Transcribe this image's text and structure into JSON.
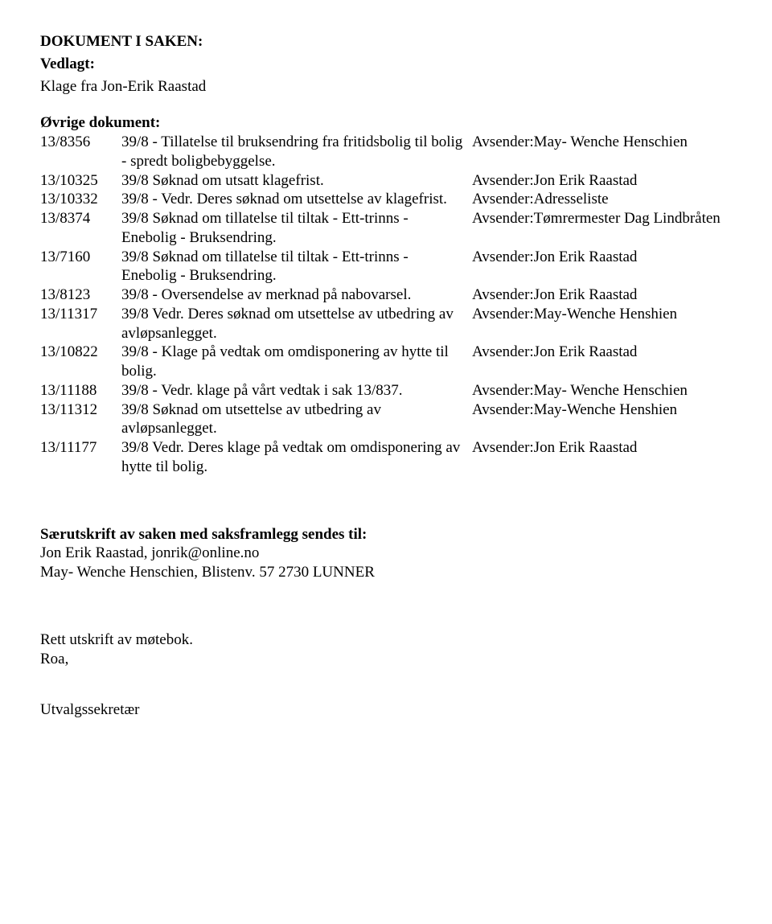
{
  "header": {
    "title": "DOKUMENT I SAKEN:",
    "attached_label": "Vedlagt:",
    "attached_text": "Klage fra Jon-Erik Raastad",
    "other_label": "Øvrige dokument:"
  },
  "docs": [
    {
      "id": "13/8356",
      "desc": "39/8 - Tillatelse til bruksendring fra fritidsbolig til bolig - spredt boligbebyggelse.",
      "sender": "Avsender:May- Wenche Henschien"
    },
    {
      "id": "13/10325",
      "desc": "39/8 Søknad om utsatt klagefrist.",
      "sender": "Avsender:Jon Erik Raastad"
    },
    {
      "id": "13/10332",
      "desc": "39/8 - Vedr. Deres søknad om utsettelse av klagefrist.",
      "sender": "Avsender:Adresseliste"
    },
    {
      "id": "13/8374",
      "desc": "39/8 Søknad om tillatelse til tiltak - Ett-trinns - Enebolig - Bruksendring.",
      "sender": "Avsender:Tømrermester Dag Lindbråten"
    },
    {
      "id": "13/7160",
      "desc": "39/8 Søknad om tillatelse til tiltak - Ett-trinns - Enebolig - Bruksendring.",
      "sender": "Avsender:Jon Erik Raastad"
    },
    {
      "id": "13/8123",
      "desc": "39/8 - Oversendelse av merknad på nabovarsel.",
      "sender": "Avsender:Jon Erik Raastad"
    },
    {
      "id": "13/11317",
      "desc": "39/8 Vedr. Deres søknad om utsettelse av utbedring av avløpsanlegget.",
      "sender": "Avsender:May-Wenche Henshien"
    },
    {
      "id": "13/10822",
      "desc": "39/8 - Klage på vedtak om omdisponering av hytte til bolig.",
      "sender": "Avsender:Jon Erik Raastad"
    },
    {
      "id": "13/11188",
      "desc": "39/8 - Vedr. klage på vårt vedtak i sak 13/837.",
      "sender": "Avsender:May- Wenche Henschien"
    },
    {
      "id": "13/11312",
      "desc": "39/8 Søknad om utsettelse av utbedring av avløpsanlegget.",
      "sender": "Avsender:May-Wenche Henshien"
    },
    {
      "id": "13/11177",
      "desc": "39/8 Vedr. Deres klage på vedtak om omdisponering av hytte til bolig.",
      "sender": "Avsender:Jon Erik Raastad"
    }
  ],
  "copies": {
    "heading": "Særutskrift av saken med saksframlegg sendes til:",
    "lines": [
      "Jon Erik Raastad,   jonrik@online.no",
      "May- Wenche Henschien, Blistenv. 57 2730 LUNNER"
    ]
  },
  "footer": {
    "line1": "Rett utskrift av møtebok.",
    "line2": "Roa,",
    "role": "Utvalgssekretær"
  }
}
